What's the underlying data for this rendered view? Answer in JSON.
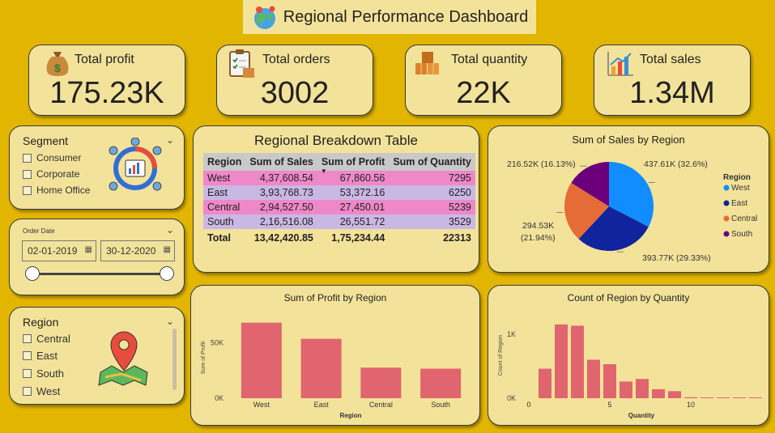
{
  "header": {
    "title": "Regional Performance Dashboard",
    "icon": "globe-pin-icon"
  },
  "kpis": [
    {
      "label": "Total profit",
      "value": "175.23K",
      "icon": "money-bag-icon"
    },
    {
      "label": "Total orders",
      "value": "3002",
      "icon": "clipboard-icon"
    },
    {
      "label": "Total quantity",
      "value": "22K",
      "icon": "boxes-icon"
    },
    {
      "label": "Total sales",
      "value": "1.34M",
      "icon": "growth-chart-icon"
    }
  ],
  "segment_slicer": {
    "title": "Segment",
    "options": [
      "Consumer",
      "Corporate",
      "Home Office"
    ]
  },
  "date_slicer": {
    "title": "Order Date",
    "start": "02-01-2019",
    "end": "30-12-2020"
  },
  "region_slicer": {
    "title": "Region",
    "options": [
      "Central",
      "East",
      "South",
      "West"
    ]
  },
  "table": {
    "title": "Regional Breakdown Table",
    "headers": [
      "Region",
      "Sum of Sales",
      "Sum of Profit",
      "Sum of Quantity"
    ],
    "rows": [
      [
        "West",
        "4,37,608.54",
        "67,860.56",
        "7295"
      ],
      [
        "East",
        "3,93,768.73",
        "53,372.16",
        "6250"
      ],
      [
        "Central",
        "2,94,527.50",
        "27,450.01",
        "5239"
      ],
      [
        "South",
        "2,16,516.08",
        "26,551.72",
        "3529"
      ]
    ],
    "total": [
      "Total",
      "13,42,420.85",
      "1,75,234.44",
      "22313"
    ]
  },
  "chart_data": [
    {
      "type": "pie",
      "title": "Sum of Sales by Region",
      "legend_title": "Region",
      "legend_position": "right",
      "slices": [
        {
          "name": "West",
          "value": 437.61,
          "label": "437.61K (32.6%)",
          "color": "#118dff"
        },
        {
          "name": "East",
          "value": 393.77,
          "label": "393.77K (29.33%)",
          "color": "#12239e"
        },
        {
          "name": "Central",
          "value": 294.53,
          "label": "294.53K (21.94%)",
          "color": "#e66c37"
        },
        {
          "name": "South",
          "value": 216.52,
          "label": "216.52K (16.13%)",
          "color": "#6b007b"
        }
      ]
    },
    {
      "type": "bar",
      "title": "Sum of Profit by Region",
      "categories": [
        "West",
        "East",
        "Central",
        "South"
      ],
      "values": [
        67860.56,
        53372.16,
        27450.01,
        26551.72
      ],
      "xlabel": "Region",
      "ylabel": "Sum of Profit",
      "yticks": [
        {
          "v": 0,
          "label": "0K"
        },
        {
          "v": 50000,
          "label": "50K"
        }
      ],
      "ylim": [
        0,
        72000
      ],
      "color": "#e0656e"
    },
    {
      "type": "bar",
      "title": "Count of Region by Quantity",
      "x": [
        1,
        2,
        3,
        4,
        5,
        6,
        7,
        8,
        9,
        10,
        11,
        12,
        13,
        14
      ],
      "values": [
        460,
        1150,
        1130,
        600,
        530,
        260,
        300,
        140,
        110,
        15,
        10,
        10,
        5,
        5
      ],
      "xlabel": "Quantity",
      "ylabel": "Count of Region",
      "xticks": [
        0,
        5,
        10
      ],
      "yticks": [
        {
          "v": 0,
          "label": "0K"
        },
        {
          "v": 1000,
          "label": "1K"
        }
      ],
      "ylim": [
        0,
        1300
      ],
      "color": "#e0656e"
    }
  ]
}
